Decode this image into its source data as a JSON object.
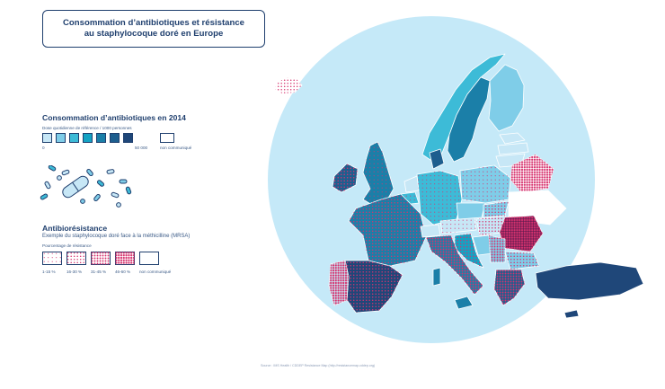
{
  "title": {
    "line1": "Consommation d’antibiotiques et résistance",
    "line2": "au staphylocoque doré en Europe"
  },
  "consumption_legend": {
    "title": "Consommation d’antibiotiques en 2014",
    "subtitle": "Dose quotidienne de référence / 1000 personnes",
    "min_label": "0",
    "max_label": "50 000",
    "no_data_label": "non communiqué",
    "colors": [
      "#c7e7f6",
      "#7fcde8",
      "#3dbbd7",
      "#14a3c3",
      "#1b7fa8",
      "#1d5e8e",
      "#1f4779"
    ]
  },
  "resistance_legend": {
    "title": "Antibiorésistance",
    "subtitle": "Exemple du staphylocoque doré face à la méthicilline (MRSA)",
    "scale_title": "Pourcentage de résistance",
    "classes": [
      "1-15 %",
      "16-30 %",
      "31-45 %",
      "46-60 %"
    ],
    "no_data_label": "non communiqué"
  },
  "source": "Source : IMS Health / CDDEP Resistance Map (http://resistancemap.cddep.org)",
  "colors": {
    "ocean": "#c5e9f8",
    "navy": "#1f3f6e",
    "resistance_dot": "#d6326e"
  },
  "icons": [
    "pills-icon",
    "capsule-icon"
  ]
}
